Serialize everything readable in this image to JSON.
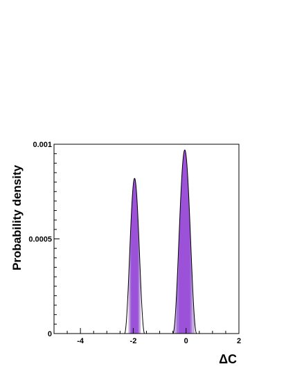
{
  "chart_data": {
    "type": "area",
    "xlabel": "ΔC",
    "ylabel": "Probability density",
    "xlim": [
      -5,
      2
    ],
    "ylim": [
      0,
      0.001
    ],
    "x_ticks": [
      -4,
      -2,
      0,
      2
    ],
    "x_tick_labels": [
      "-4",
      "-2",
      "0",
      "2"
    ],
    "y_ticks": [
      0,
      0.0005,
      0.001
    ],
    "y_tick_labels": [
      "0",
      "0.0005",
      "0.001"
    ],
    "grid": false,
    "legend": "none",
    "peaks": [
      {
        "center": -1.95,
        "height": 0.00082,
        "half_width": 0.38
      },
      {
        "center": -0.05,
        "height": 0.00097,
        "half_width": 0.45
      }
    ],
    "shaded_bands": [
      {
        "level": "outer",
        "color": "#c8a8e0",
        "ranges": [
          [
            -2.18,
            -1.72
          ],
          [
            -0.45,
            0.32
          ]
        ]
      },
      {
        "level": "middle",
        "color": "#a272d8",
        "ranges": [
          [
            -2.12,
            -1.78
          ],
          [
            -0.36,
            0.21
          ]
        ]
      },
      {
        "level": "inner",
        "color": "#9b51d8",
        "ranges": [
          [
            -2.08,
            -1.82
          ],
          [
            -0.27,
            0.15
          ]
        ]
      }
    ],
    "colors": {
      "curve": "#000000",
      "axis": "#000000"
    }
  }
}
